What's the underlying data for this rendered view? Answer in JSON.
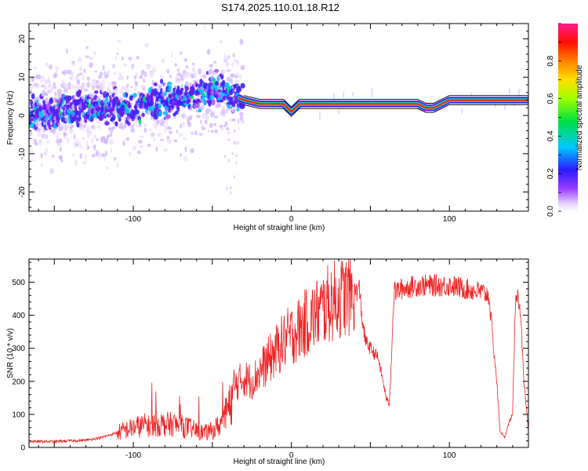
{
  "page": {
    "title": "S174.2025.110.01.18.R12"
  },
  "colors": {
    "snr_line": "#ee2222",
    "frame": "#000000"
  },
  "chart_data": [
    {
      "type": "heatmap",
      "title": "S174.2025.110.01.18.R12",
      "xlabel": "Height of straight line (km)",
      "ylabel": "Frequency (Hz)",
      "xlim": [
        -166,
        150
      ],
      "ylim": [
        -25,
        24
      ],
      "xticks": [
        -100,
        0,
        100
      ],
      "yticks": [
        -20,
        -10,
        0,
        10,
        20
      ],
      "grid": false,
      "colorbar": {
        "label": "Normalized spectral amplitude",
        "range": [
          0,
          1
        ],
        "ticks": [
          0.0,
          0.2,
          0.4,
          0.6,
          0.8
        ],
        "colormap": "rainbow (white-violet-blue-cyan-green-yellow-orange-red-magenta)"
      },
      "ridge": {
        "x": [
          -166,
          -150,
          -130,
          -110,
          -90,
          -70,
          -55,
          -45,
          -40,
          -35,
          -30,
          -20,
          -10,
          -5,
          0,
          5,
          20,
          40,
          60,
          70,
          80,
          85,
          90,
          95,
          100,
          110,
          120,
          130,
          140,
          150
        ],
        "y": [
          1,
          1,
          2,
          2,
          3,
          4,
          6,
          7,
          6,
          5,
          4,
          3,
          3,
          3,
          1,
          3,
          3,
          3,
          3,
          3,
          3,
          2,
          2,
          3,
          4,
          4,
          4,
          4,
          4,
          4
        ]
      }
    },
    {
      "type": "line",
      "xlabel": "Height of straight line (km)",
      "ylabel": "SNR (10 * v/v)",
      "xlim": [
        -166,
        150
      ],
      "ylim": [
        0,
        570
      ],
      "xticks": [
        -100,
        0,
        100
      ],
      "yticks": [
        0,
        100,
        200,
        300,
        400,
        500
      ],
      "grid": false,
      "series": [
        {
          "x": [
            -166,
            -150,
            -140,
            -130,
            -120,
            -110,
            -100,
            -95,
            -90,
            -85,
            -80,
            -75,
            -70,
            -65,
            -60,
            -55,
            -50,
            -45,
            -40,
            -35,
            -30,
            -25,
            -20,
            -15,
            -10,
            -5,
            0,
            5,
            10,
            15,
            20,
            25,
            30,
            35,
            40,
            43,
            45,
            47,
            50,
            55,
            58,
            60,
            62,
            65,
            70,
            80,
            90,
            100,
            110,
            120,
            125,
            128,
            130,
            132,
            135,
            138,
            140,
            142,
            145,
            147,
            150
          ],
          "y": [
            18,
            18,
            20,
            22,
            30,
            45,
            60,
            65,
            70,
            70,
            70,
            70,
            65,
            60,
            50,
            45,
            50,
            70,
            110,
            190,
            210,
            200,
            230,
            260,
            290,
            320,
            340,
            360,
            380,
            400,
            420,
            440,
            450,
            460,
            470,
            480,
            380,
            320,
            300,
            270,
            200,
            150,
            130,
            470,
            480,
            490,
            490,
            490,
            480,
            470,
            460,
            300,
            200,
            50,
            30,
            80,
            100,
            480,
            420,
            200,
            50
          ]
        }
      ]
    }
  ]
}
